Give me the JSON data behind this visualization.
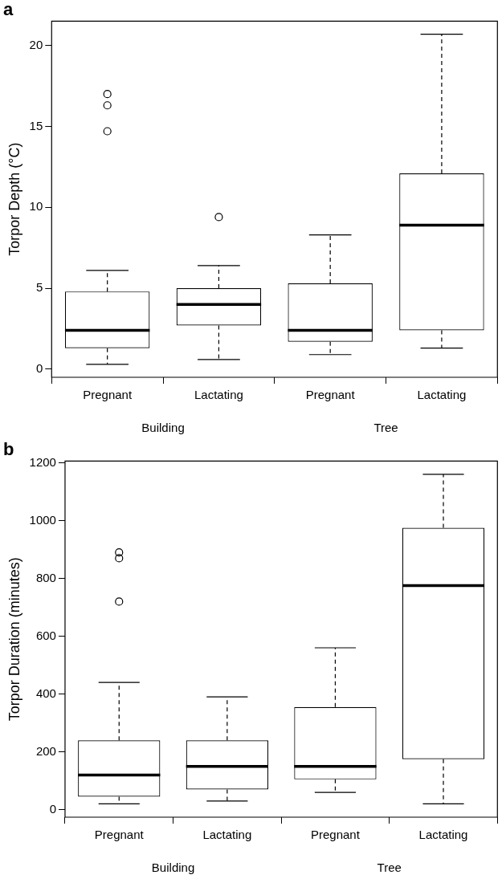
{
  "chart_data": [
    {
      "type": "box",
      "title": "a",
      "ylabel": "Torpor Depth (°C)",
      "color": "#000000",
      "categories": [
        "Pregnant",
        "Lactating",
        "Pregnant",
        "Lactating"
      ],
      "boxes": [
        {
          "low": 0.3,
          "q1": 1.3,
          "median": 2.4,
          "q3": 4.8,
          "high": 6.1,
          "outliers": [
            14.7,
            16.3,
            17.0
          ]
        },
        {
          "low": 0.6,
          "q1": 2.7,
          "median": 4.0,
          "q3": 5.0,
          "high": 6.4,
          "outliers": [
            9.4
          ]
        },
        {
          "low": 0.9,
          "q1": 1.7,
          "median": 2.4,
          "q3": 5.3,
          "high": 8.3
        },
        {
          "low": 1.3,
          "q1": 2.4,
          "median": 8.9,
          "q3": 12.1,
          "high": 20.7
        }
      ],
      "ylim": [
        -0.5,
        21.5
      ],
      "yticks": [
        0,
        5,
        10,
        15,
        20
      ],
      "annotations": [
        "Building",
        "Tree"
      ]
    },
    {
      "type": "box",
      "title": "b",
      "ylabel": "Torpor Duration (minutes)",
      "color": "#000000",
      "categories": [
        "Pregnant",
        "Lactating",
        "Pregnant",
        "Lactating"
      ],
      "boxes": [
        {
          "low": 20,
          "q1": 45,
          "median": 120,
          "q3": 240,
          "high": 440,
          "outliers": [
            720,
            870,
            890
          ]
        },
        {
          "low": 30,
          "q1": 70,
          "median": 150,
          "q3": 240,
          "high": 390
        },
        {
          "low": 60,
          "q1": 105,
          "median": 150,
          "q3": 355,
          "high": 560
        },
        {
          "low": 20,
          "q1": 175,
          "median": 775,
          "q3": 975,
          "high": 1160
        }
      ],
      "ylim": [
        -26,
        1206
      ],
      "yticks": [
        0,
        200,
        400,
        600,
        800,
        1000,
        1200
      ],
      "annotations": [
        "Building",
        "Tree"
      ]
    }
  ]
}
